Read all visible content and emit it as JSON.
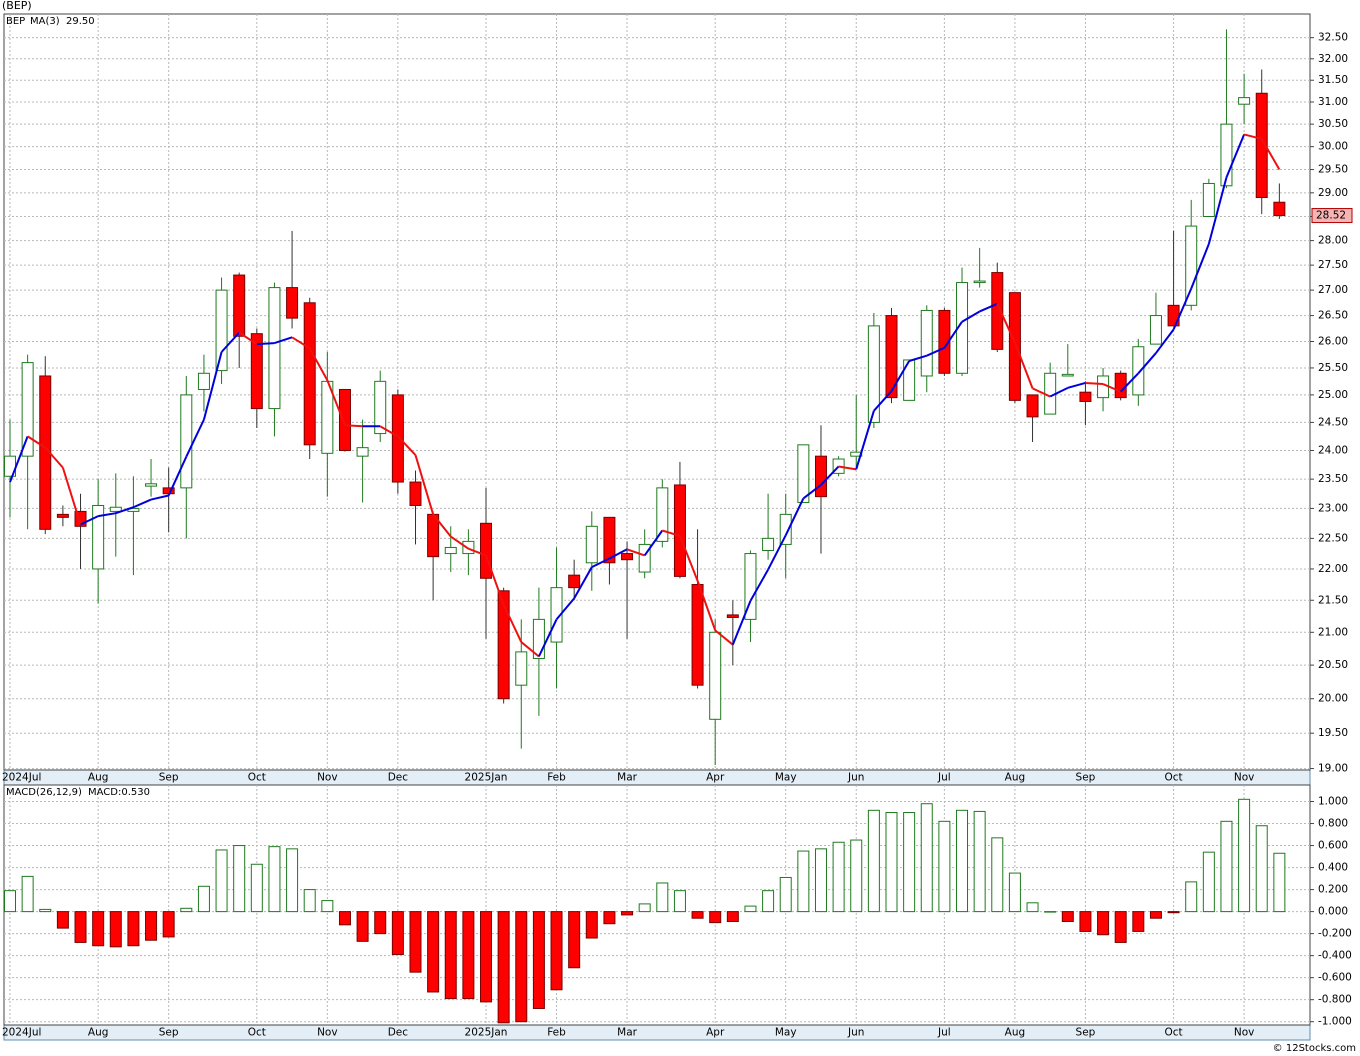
{
  "chart_data": [
    {
      "type": "candlestick",
      "title": "(BEP)",
      "log": true,
      "grid": true,
      "categories": [
        "2024Jul",
        null,
        null,
        null,
        null,
        "Aug",
        null,
        null,
        null,
        "Sep",
        null,
        null,
        null,
        null,
        "Oct",
        null,
        null,
        null,
        "Nov",
        null,
        null,
        null,
        "Dec",
        null,
        null,
        null,
        null,
        "2025Jan",
        null,
        null,
        null,
        "Feb",
        null,
        null,
        null,
        "Mar",
        null,
        null,
        null,
        null,
        "Apr",
        null,
        null,
        null,
        "May",
        null,
        null,
        null,
        "Jun",
        null,
        null,
        null,
        null,
        "Jul",
        null,
        null,
        null,
        "Aug",
        null,
        null,
        null,
        "Sep",
        null,
        null,
        null,
        null,
        "Oct",
        null,
        null,
        null,
        "Nov",
        null,
        null
      ],
      "ylim": [
        18.98,
        33.07
      ],
      "yticks": [
        {
          "value": 19,
          "label": "19.00"
        },
        {
          "value": 19.5,
          "label": "19.50"
        },
        {
          "value": 20,
          "label": "20.00"
        },
        {
          "value": 20.5,
          "label": "20.50"
        },
        {
          "value": 21,
          "label": "21.00"
        },
        {
          "value": 21.5,
          "label": "21.50"
        },
        {
          "value": 22,
          "label": "22.00"
        },
        {
          "value": 22.5,
          "label": "22.50"
        },
        {
          "value": 23,
          "label": "23.00"
        },
        {
          "value": 23.5,
          "label": "23.50"
        },
        {
          "value": 24,
          "label": "24.00"
        },
        {
          "value": 24.5,
          "label": "24.50"
        },
        {
          "value": 25,
          "label": "25.00"
        },
        {
          "value": 25.5,
          "label": "25.50"
        },
        {
          "value": 26,
          "label": "26.00"
        },
        {
          "value": 26.5,
          "label": "26.50"
        },
        {
          "value": 27,
          "label": "27.00"
        },
        {
          "value": 27.5,
          "label": "27.50"
        },
        {
          "value": 28,
          "label": "28.00"
        },
        {
          "value": 28.5,
          "label": "28.50"
        },
        {
          "value": 29,
          "label": "29.00"
        },
        {
          "value": 29.5,
          "label": "29.50"
        },
        {
          "value": 30,
          "label": "30.00"
        },
        {
          "value": 30.5,
          "label": "30.50"
        },
        {
          "value": 31,
          "label": "31.00"
        },
        {
          "value": 31.5,
          "label": "31.50"
        },
        {
          "value": 32,
          "label": "32.00"
        },
        {
          "value": 32.5,
          "label": "32.50"
        }
      ],
      "series": [
        {
          "name": "BEP",
          "type": "candlestick",
          "up_color": "#1f7a1f",
          "down_color": "#ff0000",
          "last_label": "28.52",
          "open": [
            23.55,
            23.9,
            25.35,
            22.9,
            22.95,
            22.0,
            22.95,
            22.95,
            23.38,
            23.35,
            23.35,
            25.1,
            25.45,
            27.3,
            26.15,
            24.75,
            27.05,
            26.75,
            23.95,
            25.1,
            23.9,
            24.3,
            25.0,
            23.45,
            22.9,
            22.25,
            22.25,
            22.75,
            21.65,
            20.2,
            20.6,
            20.85,
            21.9,
            22.1,
            22.85,
            22.25,
            21.95,
            22.45,
            23.4,
            21.75,
            19.7,
            21.27,
            21.2,
            22.3,
            22.4,
            23.1,
            23.9,
            23.6,
            23.9,
            24.5,
            26.5,
            24.9,
            25.35,
            26.6,
            25.4,
            27.15,
            27.35,
            26.95,
            25.0,
            24.65,
            25.35,
            25.05,
            24.95,
            25.4,
            25.0,
            25.95,
            26.7,
            26.7,
            28.5,
            29.15,
            30.95,
            31.2,
            28.8
          ],
          "high": [
            24.55,
            25.75,
            25.72,
            23.05,
            23.25,
            23.5,
            23.6,
            23.55,
            23.85,
            23.7,
            25.35,
            25.75,
            27.25,
            27.35,
            26.25,
            27.15,
            28.2,
            26.85,
            25.8,
            25.1,
            24.55,
            25.45,
            25.1,
            23.65,
            22.95,
            22.7,
            22.65,
            23.35,
            21.7,
            21.2,
            21.7,
            22.35,
            22.15,
            22.95,
            22.85,
            22.45,
            22.65,
            23.5,
            23.8,
            22.65,
            21.2,
            21.5,
            22.3,
            23.25,
            23.25,
            24.1,
            24.45,
            23.9,
            25.0,
            26.55,
            26.65,
            25.65,
            26.7,
            26.65,
            27.45,
            27.85,
            27.55,
            26.95,
            25.0,
            25.6,
            25.95,
            25.25,
            25.5,
            25.45,
            26.05,
            26.95,
            28.2,
            28.85,
            29.3,
            32.7,
            31.65,
            31.75,
            29.2
          ],
          "low": [
            22.85,
            22.65,
            22.57,
            22.7,
            22.0,
            21.45,
            22.2,
            21.9,
            23.2,
            22.6,
            22.5,
            24.7,
            25.2,
            25.5,
            24.4,
            24.25,
            26.25,
            23.85,
            23.2,
            23.98,
            23.1,
            24.15,
            23.25,
            22.4,
            21.5,
            21.95,
            21.9,
            20.9,
            19.93,
            19.28,
            19.75,
            20.15,
            21.5,
            21.65,
            21.75,
            20.9,
            21.85,
            22.35,
            21.85,
            20.15,
            19.05,
            20.5,
            20.85,
            22.15,
            21.85,
            23.1,
            22.25,
            23.55,
            23.7,
            24.4,
            24.85,
            24.9,
            25.05,
            25.35,
            25.35,
            27.05,
            25.8,
            24.85,
            24.15,
            24.65,
            25.35,
            24.45,
            24.7,
            24.9,
            24.8,
            25.95,
            26.3,
            26.6,
            28.5,
            29.1,
            30.5,
            28.55,
            28.45
          ],
          "close": [
            23.9,
            25.6,
            22.65,
            22.85,
            22.7,
            23.05,
            23.02,
            23.0,
            23.42,
            23.25,
            25.0,
            25.4,
            27.0,
            26.1,
            24.75,
            27.05,
            26.45,
            24.1,
            25.25,
            24.0,
            24.05,
            25.25,
            23.45,
            23.05,
            22.2,
            22.35,
            22.45,
            21.85,
            20.0,
            20.7,
            21.2,
            21.7,
            21.7,
            22.7,
            22.1,
            22.15,
            22.4,
            23.35,
            21.88,
            20.2,
            21.0,
            21.23,
            22.25,
            22.5,
            22.9,
            24.1,
            23.2,
            23.85,
            23.97,
            26.3,
            24.95,
            25.65,
            26.6,
            25.4,
            27.15,
            27.18,
            25.85,
            24.9,
            24.6,
            25.4,
            25.38,
            24.88,
            25.35,
            24.95,
            25.9,
            26.5,
            26.3,
            28.3,
            29.2,
            30.5,
            31.1,
            28.9,
            28.52
          ]
        },
        {
          "name": "MA(3)",
          "type": "line",
          "up_color": "#0000dd",
          "down_color": "#ee1111",
          "last_label": "29.50",
          "values": [
            23.45,
            24.25,
            24.05,
            23.7,
            22.73,
            22.87,
            22.92,
            23.02,
            23.15,
            23.22,
            23.89,
            24.55,
            25.8,
            26.17,
            25.95,
            25.97,
            26.08,
            25.87,
            25.27,
            24.45,
            24.43,
            24.43,
            24.25,
            23.92,
            22.9,
            22.53,
            22.33,
            22.22,
            21.43,
            20.85,
            20.63,
            21.2,
            21.53,
            22.03,
            22.17,
            22.32,
            22.22,
            22.63,
            22.54,
            21.81,
            21.03,
            20.81,
            21.49,
            21.99,
            22.55,
            23.17,
            23.4,
            23.72,
            23.67,
            24.71,
            25.07,
            25.63,
            25.73,
            25.88,
            26.38,
            26.58,
            26.73,
            25.98,
            25.12,
            24.97,
            25.13,
            25.22,
            25.2,
            25.06,
            25.4,
            25.78,
            26.23,
            27.03,
            27.93,
            29.33,
            30.27,
            30.17,
            29.5
          ]
        }
      ]
    },
    {
      "type": "bar",
      "grid": true,
      "categories": [
        "2024Jul",
        null,
        null,
        null,
        null,
        "Aug",
        null,
        null,
        null,
        "Sep",
        null,
        null,
        null,
        null,
        "Oct",
        null,
        null,
        null,
        "Nov",
        null,
        null,
        null,
        "Dec",
        null,
        null,
        null,
        null,
        "2025Jan",
        null,
        null,
        null,
        "Feb",
        null,
        null,
        null,
        "Mar",
        null,
        null,
        null,
        null,
        "Apr",
        null,
        null,
        null,
        "May",
        null,
        null,
        null,
        "Jun",
        null,
        null,
        null,
        null,
        "Jul",
        null,
        null,
        null,
        "Aug",
        null,
        null,
        null,
        "Sep",
        null,
        null,
        null,
        null,
        "Oct",
        null,
        null,
        null,
        "Nov",
        null,
        null
      ],
      "ylim": [
        -1.03,
        1.15
      ],
      "yticks": [
        {
          "value": 1,
          "label": "1.000"
        },
        {
          "value": 0.8,
          "label": "0.800"
        },
        {
          "value": 0.6,
          "label": "0.600"
        },
        {
          "value": 0.4,
          "label": "0.400"
        },
        {
          "value": 0.2,
          "label": "0.200"
        },
        {
          "value": 0,
          "label": "0.000"
        },
        {
          "value": -0.2,
          "label": "-0.200"
        },
        {
          "value": -0.4,
          "label": "-0.400"
        },
        {
          "value": -0.6,
          "label": "-0.600"
        },
        {
          "value": -0.8,
          "label": "-0.800"
        },
        {
          "value": -1,
          "label": "-1.000"
        }
      ],
      "series": [
        {
          "name": "MACD(26,12,9)",
          "up_color": "#1f7a1f",
          "down_color": "#ff0000",
          "last_label": "MACD:0.530",
          "values": [
            0.19,
            0.32,
            0.02,
            -0.15,
            -0.28,
            -0.31,
            -0.32,
            -0.31,
            -0.26,
            -0.23,
            0.03,
            0.23,
            0.56,
            0.6,
            0.43,
            0.59,
            0.57,
            0.2,
            0.1,
            -0.12,
            -0.27,
            -0.2,
            -0.39,
            -0.55,
            -0.73,
            -0.79,
            -0.79,
            -0.82,
            -1.01,
            -1.0,
            -0.88,
            -0.71,
            -0.51,
            -0.24,
            -0.11,
            -0.03,
            0.07,
            0.26,
            0.19,
            -0.06,
            -0.1,
            -0.09,
            0.05,
            0.19,
            0.31,
            0.55,
            0.57,
            0.63,
            0.65,
            0.92,
            0.9,
            0.9,
            0.98,
            0.82,
            0.92,
            0.91,
            0.67,
            0.35,
            0.08,
            0,
            -0.09,
            -0.18,
            -0.21,
            -0.28,
            -0.18,
            -0.06,
            -0.01,
            0.27,
            0.54,
            0.82,
            1.02,
            0.78,
            0.53
          ]
        }
      ]
    }
  ],
  "footer": "© 12Stocks.com"
}
